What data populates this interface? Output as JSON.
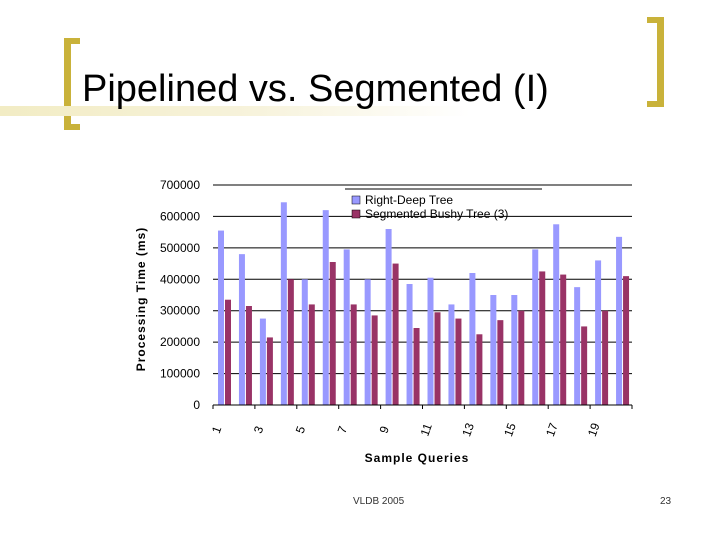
{
  "slide": {
    "title": "Pipelined vs. Segmented (I)",
    "footer_left": "VLDB 2005",
    "page_number": "23"
  },
  "colors": {
    "accent": "#c9b23a",
    "series1": "#9999ff",
    "series2": "#993366"
  },
  "chart_data": {
    "type": "bar",
    "categories": [
      "1",
      "2",
      "3",
      "4",
      "5",
      "6",
      "7",
      "8",
      "9",
      "10",
      "11",
      "12",
      "13",
      "14",
      "15",
      "16",
      "17",
      "18",
      "19",
      "20"
    ],
    "tick_labels": [
      "1",
      "3",
      "5",
      "7",
      "9",
      "11",
      "13",
      "15",
      "17",
      "19"
    ],
    "series": [
      {
        "name": "Right-Deep Tree",
        "color": "#9999ff",
        "values": [
          555000,
          480000,
          275000,
          645000,
          400000,
          620000,
          495000,
          400000,
          560000,
          385000,
          405000,
          320000,
          420000,
          350000,
          350000,
          495000,
          575000,
          375000,
          460000,
          535000
        ]
      },
      {
        "name": "Segmented Bushy Tree (3)",
        "color": "#993366",
        "values": [
          335000,
          315000,
          215000,
          400000,
          320000,
          455000,
          320000,
          285000,
          450000,
          245000,
          295000,
          275000,
          225000,
          270000,
          300000,
          425000,
          415000,
          250000,
          300000,
          410000
        ]
      }
    ],
    "xlabel": "Sample Queries",
    "ylabel": "Processing Time (ms)",
    "ylim": [
      0,
      700000
    ],
    "yticks": [
      "0",
      "100000",
      "200000",
      "300000",
      "400000",
      "500000",
      "600000",
      "700000"
    ],
    "grid": true,
    "legend_position": "top-right"
  }
}
